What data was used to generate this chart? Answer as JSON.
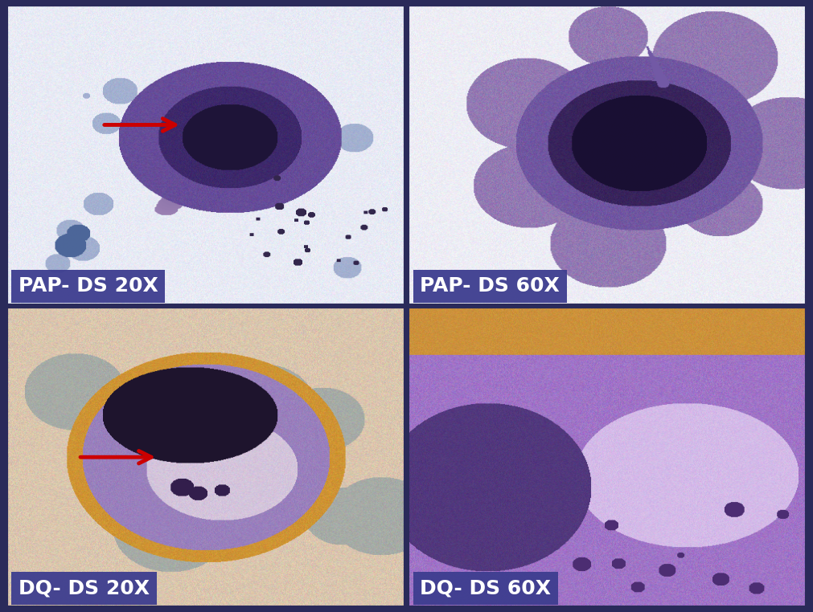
{
  "figure_bg": "#2a2a5a",
  "border_color": "#2a2a5a",
  "panel_labels": [
    "PAP- DS 20X",
    "PAP- DS 60X",
    "DQ- DS 20X",
    "DQ- DS 60X"
  ],
  "label_bg": "#3d3d8f",
  "label_text_color": "#ffffff",
  "label_fontsize": 18,
  "label_fontweight": "bold",
  "arrow_color": "#cc0000",
  "figure_width": 10.11,
  "figure_height": 7.62
}
